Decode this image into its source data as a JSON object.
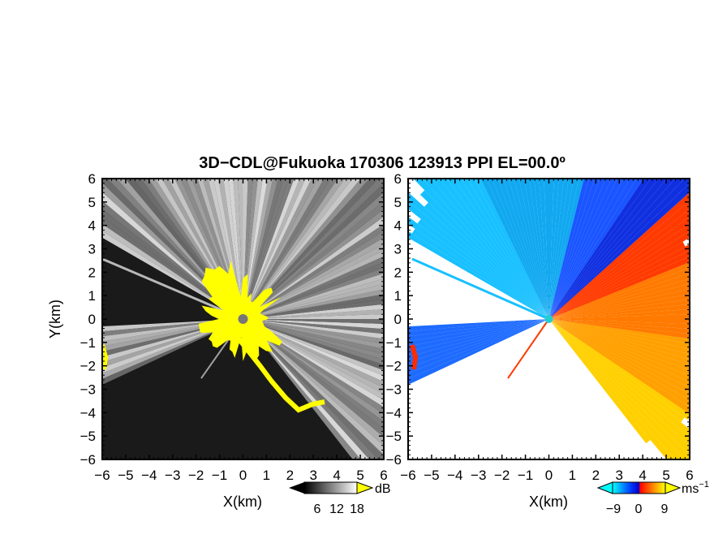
{
  "title": "3D−CDL@Fukuoka 170306 123913 PPI EL=00.0º",
  "chart_data": [
    {
      "type": "heatmap",
      "product": "intensity",
      "xlabel": "X(km)",
      "ylabel": "Y(km)",
      "xlim": [
        -6,
        6
      ],
      "ylim": [
        -6,
        6
      ],
      "xticks": [
        "−6",
        "−5",
        "−4",
        "−3",
        "−2",
        "−1",
        "0",
        "1",
        "2",
        "3",
        "4",
        "5",
        "6"
      ],
      "yticks": [
        "−6",
        "−5",
        "−4",
        "−3",
        "−2",
        "−1",
        "0",
        "1",
        "2",
        "3",
        "4",
        "5",
        "6"
      ],
      "colorbar": {
        "unit": "dB",
        "ticks": [
          "6",
          "12",
          "18"
        ],
        "range": [
          3,
          21
        ],
        "colors": [
          "#000000",
          "#ffffff"
        ]
      },
      "highlight_color": "#ffff00",
      "background_color": "#1a1a1a"
    },
    {
      "type": "heatmap",
      "product": "doppler-velocity",
      "xlabel": "X(km)",
      "ylabel": "",
      "xlim": [
        -6,
        6
      ],
      "ylim": [
        -6,
        6
      ],
      "xticks": [
        "−6",
        "−5",
        "−4",
        "−3",
        "−2",
        "−1",
        "0",
        "1",
        "2",
        "3",
        "4",
        "5",
        "6"
      ],
      "yticks": [
        "−6",
        "−5",
        "−4",
        "−3",
        "−2",
        "−1",
        "0",
        "1",
        "2",
        "3",
        "4",
        "5",
        "6"
      ],
      "colorbar": {
        "unit": "ms−1",
        "ticks": [
          "−9",
          "0",
          "9"
        ],
        "range": [
          -12,
          12
        ],
        "colors": [
          "#00ffff",
          "#0033ff",
          "#ff0000",
          "#ffff00"
        ]
      },
      "background_color": "#ffffff"
    }
  ]
}
